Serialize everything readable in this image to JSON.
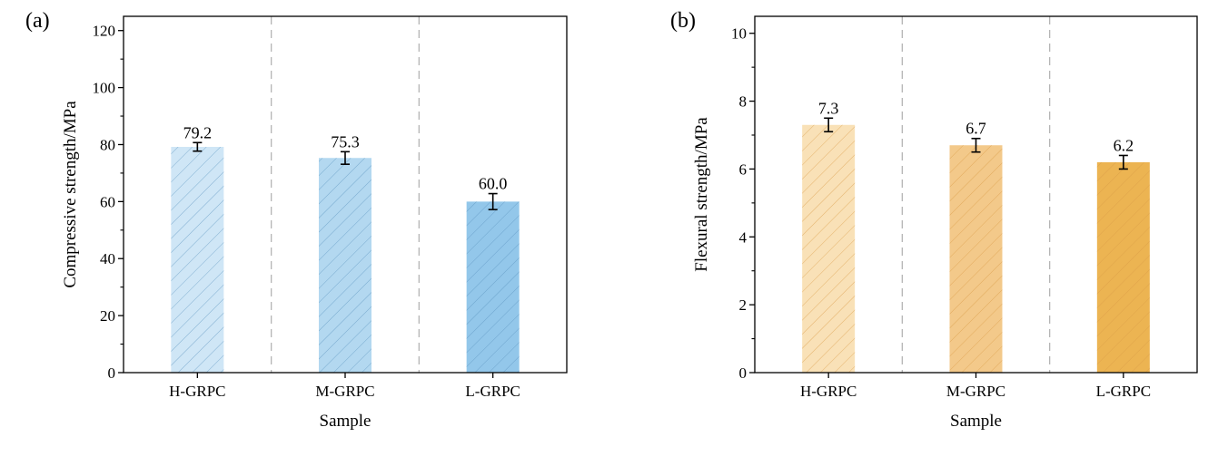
{
  "chart_data": [
    {
      "panel": "(a)",
      "type": "bar",
      "categories": [
        "H-GRPC",
        "M-GRPC",
        "L-GRPC"
      ],
      "values": [
        79.2,
        75.3,
        60.0
      ],
      "value_labels": [
        "79.2",
        "75.3",
        "60.0"
      ],
      "error": [
        1.5,
        2.2,
        2.8
      ],
      "xlabel": "Sample",
      "ylabel": "Compressive strength/MPa",
      "ylim": [
        0,
        125
      ],
      "yticks": [
        0,
        20,
        40,
        60,
        80,
        100,
        120
      ],
      "ytick_labels": [
        "0",
        "20",
        "40",
        "60",
        "80",
        "100",
        "120"
      ],
      "bar_colors": [
        "#cfe6f6",
        "#b3d8f0",
        "#93c7ea"
      ],
      "hatch_color": "#5a93bf",
      "grid": false,
      "separators": "dashed vertical lines between categories"
    },
    {
      "panel": "(b)",
      "type": "bar",
      "categories": [
        "H-GRPC",
        "M-GRPC",
        "L-GRPC"
      ],
      "values": [
        7.3,
        6.7,
        6.2
      ],
      "value_labels": [
        "7.3",
        "6.7",
        "6.2"
      ],
      "error": [
        0.2,
        0.2,
        0.2
      ],
      "xlabel": "Sample",
      "ylabel": "Flexural strength/MPa",
      "ylim": [
        0,
        10.5
      ],
      "yticks": [
        0,
        2,
        4,
        6,
        8,
        10
      ],
      "ytick_labels": [
        "0",
        "2",
        "4",
        "6",
        "8",
        "10"
      ],
      "bar_colors": [
        "#f9e1b7",
        "#f3c98a",
        "#ecb452"
      ],
      "hatch_color": "#d99a45",
      "grid": false,
      "separators": "dashed vertical lines between categories"
    }
  ]
}
